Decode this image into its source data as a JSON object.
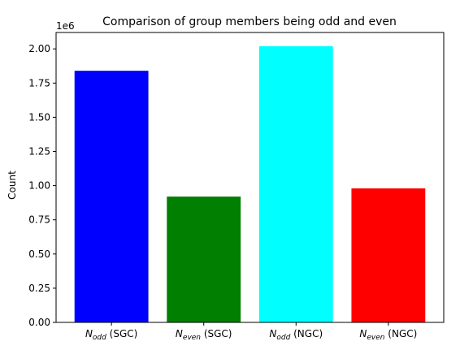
{
  "chart_data": {
    "type": "bar",
    "title": "Comparison of group members being odd and even",
    "xlabel": "",
    "ylabel": "Count",
    "y_offset_label": "1e6",
    "ylim": [
      0,
      2.12
    ],
    "y_ticks": [
      "0.00",
      "0.25",
      "0.50",
      "0.75",
      "1.00",
      "1.25",
      "1.50",
      "1.75",
      "2.00"
    ],
    "y_tick_values": [
      0,
      0.25,
      0.5,
      0.75,
      1.0,
      1.25,
      1.5,
      1.75,
      2.0
    ],
    "categories": [
      {
        "main": "N",
        "sub": "odd",
        "suffix": " (SGC)"
      },
      {
        "main": "N",
        "sub": "even",
        "suffix": " (SGC)"
      },
      {
        "main": "N",
        "sub": "odd",
        "suffix": " (NGC)"
      },
      {
        "main": "N",
        "sub": "even",
        "suffix": " (NGC)"
      }
    ],
    "values": [
      1.84,
      0.92,
      2.02,
      0.98
    ],
    "value_unit_multiplier": 1000000,
    "colors": [
      "#0000ff",
      "#007f00",
      "#00ffff",
      "#ff0000"
    ],
    "grid": false,
    "legend": "none"
  }
}
